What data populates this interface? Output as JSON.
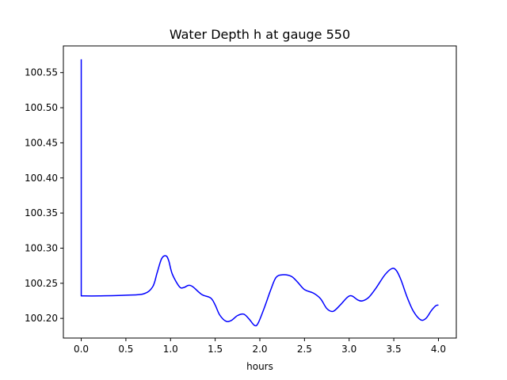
{
  "chart_data": {
    "type": "line",
    "title": "Water Depth h at gauge 550",
    "xlabel": "hours",
    "ylabel": "",
    "xlim": [
      -0.2,
      4.2
    ],
    "ylim": [
      100.172,
      100.588
    ],
    "xticks": [
      0.0,
      0.5,
      1.0,
      1.5,
      2.0,
      2.5,
      3.0,
      3.5,
      4.0
    ],
    "xtick_labels": [
      "0.0",
      "0.5",
      "1.0",
      "1.5",
      "2.0",
      "2.5",
      "3.0",
      "3.5",
      "4.0"
    ],
    "yticks": [
      100.2,
      100.25,
      100.3,
      100.35,
      100.4,
      100.45,
      100.5,
      100.55
    ],
    "ytick_labels": [
      "100.20",
      "100.25",
      "100.30",
      "100.35",
      "100.40",
      "100.45",
      "100.50",
      "100.55"
    ],
    "grid": false,
    "series": [
      {
        "color": "#0000ff",
        "x": [
          0.0,
          0.0,
          0.2,
          0.5,
          0.7,
          0.8,
          0.85,
          0.9,
          0.95,
          0.98,
          1.02,
          1.1,
          1.15,
          1.2,
          1.25,
          1.35,
          1.45,
          1.5,
          1.55,
          1.62,
          1.68,
          1.75,
          1.82,
          1.88,
          1.94,
          1.98,
          2.05,
          2.12,
          2.18,
          2.25,
          2.35,
          2.42,
          2.5,
          2.6,
          2.68,
          2.75,
          2.82,
          2.9,
          2.98,
          3.03,
          3.1,
          3.15,
          3.22,
          3.3,
          3.4,
          3.48,
          3.53,
          3.58,
          3.65,
          3.72,
          3.8,
          3.86,
          3.92,
          3.97,
          4.0
        ],
        "y": [
          100.569,
          100.232,
          100.232,
          100.233,
          100.235,
          100.245,
          100.265,
          100.285,
          100.289,
          100.282,
          100.263,
          100.245,
          100.244,
          100.247,
          100.245,
          100.234,
          100.229,
          100.219,
          100.205,
          100.196,
          100.197,
          100.204,
          100.206,
          100.199,
          100.19,
          100.193,
          100.215,
          100.24,
          100.258,
          100.262,
          100.26,
          100.252,
          100.241,
          100.236,
          100.228,
          100.214,
          100.21,
          100.219,
          100.23,
          100.232,
          100.226,
          100.225,
          100.23,
          100.243,
          100.262,
          100.271,
          100.268,
          100.255,
          100.23,
          100.21,
          100.198,
          100.2,
          100.211,
          100.218,
          100.219
        ]
      }
    ]
  }
}
